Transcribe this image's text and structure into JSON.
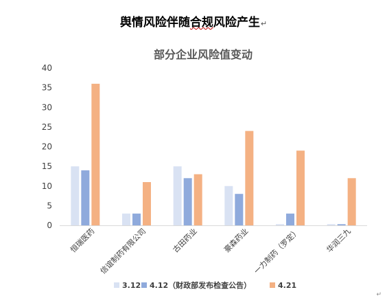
{
  "document": {
    "title_plain": "舆情风险伴随",
    "title_underlined": "合规",
    "title_rest": "风险产生",
    "paragraph_mark": "↵"
  },
  "chart_data": {
    "type": "bar",
    "title": "部分企业风险值变动",
    "categories": [
      "恒瑞医药",
      "信谊制药有限公司",
      "古田药业",
      "豪森药业",
      "一力制药（罗定）",
      "华润三九"
    ],
    "series": [
      {
        "name": "3.12",
        "color": "#d9e2f3",
        "values": [
          15,
          3,
          15,
          10,
          0.3,
          0.3
        ]
      },
      {
        "name": "4.12（财政部发布检查公告）",
        "color": "#8faadc",
        "values": [
          14,
          3,
          12,
          8,
          3,
          0.3
        ]
      },
      {
        "name": "4.21",
        "color": "#f4b183",
        "values": [
          36,
          11,
          13,
          24,
          19,
          12
        ]
      }
    ],
    "ylim": [
      0,
      40
    ],
    "yticks": [
      0,
      5,
      10,
      15,
      20,
      25,
      30,
      35,
      40
    ],
    "grid": false,
    "legend": "bottom"
  },
  "footer": {
    "corner_mark": "↵"
  }
}
